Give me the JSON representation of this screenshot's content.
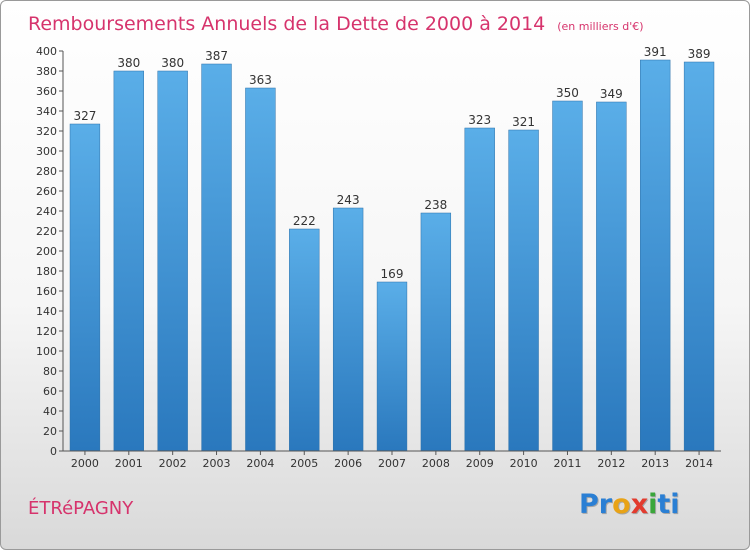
{
  "commune": "ÉTRéPAGNY",
  "brand": {
    "letters": [
      "P",
      "r",
      "o",
      "x",
      "i",
      "t",
      "i"
    ],
    "colors": [
      "#2a7fd4",
      "#2a7fd4",
      "#e8a317",
      "#e23b2e",
      "#3aa63a",
      "#2a7fd4",
      "#2a7fd4"
    ]
  },
  "colors": {
    "bar_top": "#5aaee8",
    "bar_bottom": "#2a78bd",
    "title": "#d6336c"
  },
  "chart_data": {
    "type": "bar",
    "title": "Remboursements Annuels de la Dette de 2000 à 2014",
    "unit_label": "(en milliers d'€)",
    "xlabel": "",
    "ylabel": "",
    "categories": [
      "2000",
      "2001",
      "2002",
      "2003",
      "2004",
      "2005",
      "2006",
      "2007",
      "2008",
      "2009",
      "2010",
      "2011",
      "2012",
      "2013",
      "2014"
    ],
    "values": [
      327,
      380,
      380,
      387,
      363,
      222,
      243,
      169,
      238,
      323,
      321,
      350,
      349,
      391,
      389
    ],
    "ylim": [
      0,
      400
    ],
    "ytick_step": 20,
    "grid": false,
    "legend": "none"
  }
}
